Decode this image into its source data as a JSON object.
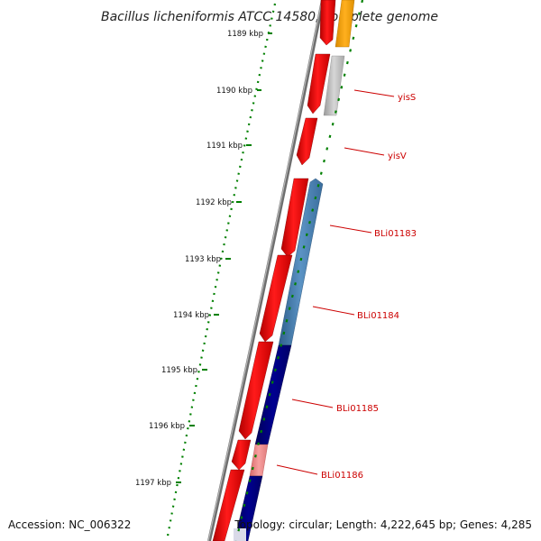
{
  "title": "Bacillus licheniformis ATCC 14580, complete genome",
  "footer": {
    "accession": "Accession: NC_006322",
    "topology": "Topology: circular; Length: 4,222,645 bp; Genes: 4,285"
  },
  "ticks": [
    "1189 kbp",
    "1190 kbp",
    "1191 kbp",
    "1192 kbp",
    "1193 kbp",
    "1194 kbp",
    "1195 kbp",
    "1196 kbp",
    "1197 kbp"
  ],
  "gene_labels": [
    "yisS",
    "yisV",
    "BLi01183",
    "BLi01184",
    "BLi01185",
    "BLi01186"
  ],
  "colors": {
    "forward_gene": "#ff0000",
    "reverse_steelblue": "#4682b4",
    "reverse_navy": "#000080",
    "reverse_silver": "#c0c0c0",
    "reverse_orange": "#ffa500",
    "reverse_pink": "#f08080",
    "tick_mark": "#008000",
    "backbone": "#808080"
  }
}
